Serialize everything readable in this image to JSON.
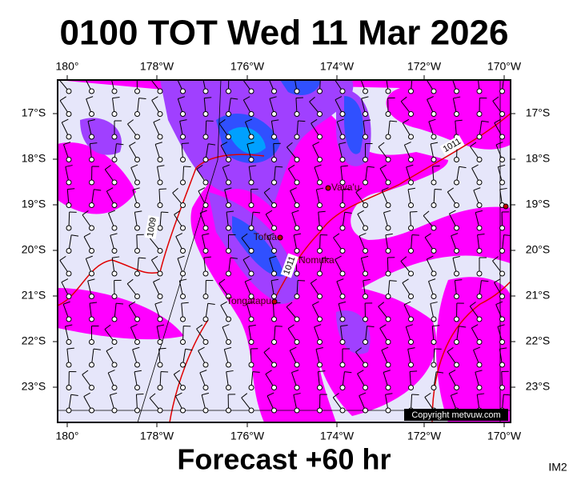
{
  "title": "0100 TOT Wed 11 Mar 2026",
  "footer": "Forecast +60 hr",
  "corner_label": "IM2",
  "copyright": "Copyright metvuw.com",
  "lon_ticks": [
    "180°",
    "178°W",
    "176°W",
    "174°W",
    "172°W",
    "170°W"
  ],
  "lat_ticks": [
    "17°S",
    "18°S",
    "19°S",
    "20°S",
    "21°S",
    "22°S",
    "23°S"
  ],
  "places": [
    "Vava'u",
    "Tofua",
    "Nomuka",
    "Tongatapu"
  ],
  "isobar_labels": [
    "1011",
    "1009",
    "1011"
  ]
}
